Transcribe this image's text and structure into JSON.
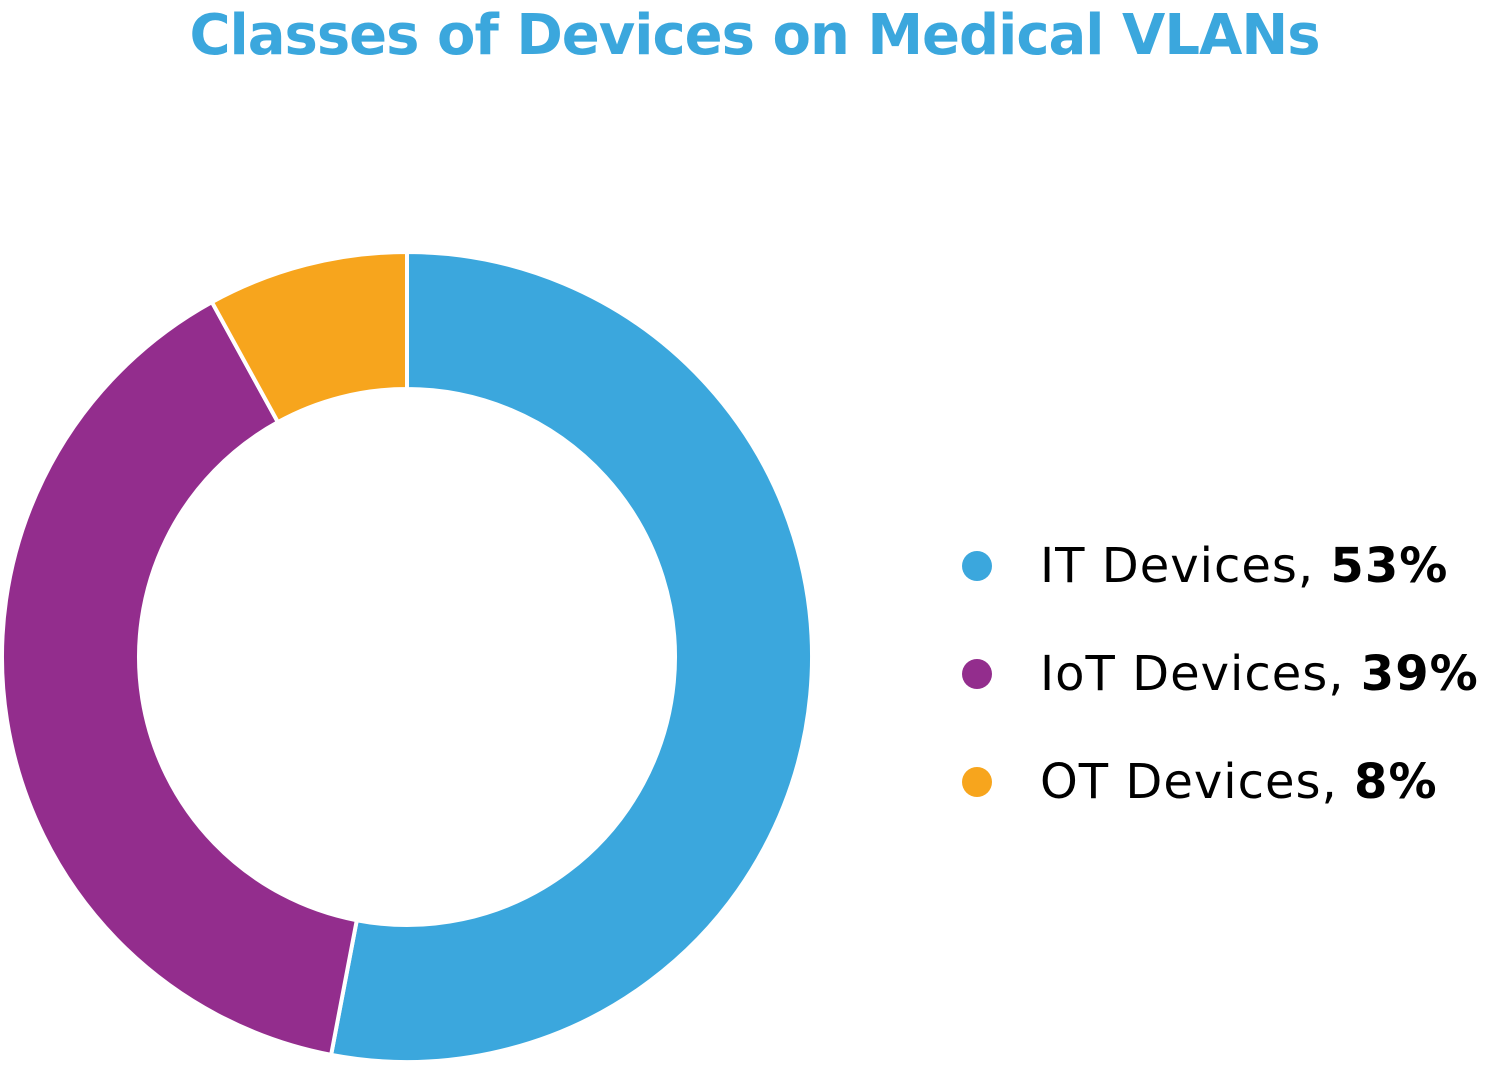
{
  "chart_data": {
    "type": "pie",
    "title": "Classes of Devices on Medical VLANs",
    "donut": true,
    "categories": [
      "IT Devices",
      "IoT Devices",
      "OT Devices"
    ],
    "values": [
      53,
      39,
      8
    ],
    "value_labels": [
      "53%",
      "39%",
      "8%"
    ],
    "colors": [
      "#3BA7DD",
      "#932D8D",
      "#F7A51D"
    ],
    "legend_position": "right",
    "start_angle": "top",
    "direction": "clockwise"
  },
  "legend": [
    {
      "label": "IT Devices,",
      "value": "53%",
      "color": "#3BA7DD"
    },
    {
      "label": "IoT Devices,",
      "value": "39%",
      "color": "#932D8D"
    },
    {
      "label": "OT Devices,",
      "value": "8%",
      "color": "#F7A51D"
    }
  ]
}
